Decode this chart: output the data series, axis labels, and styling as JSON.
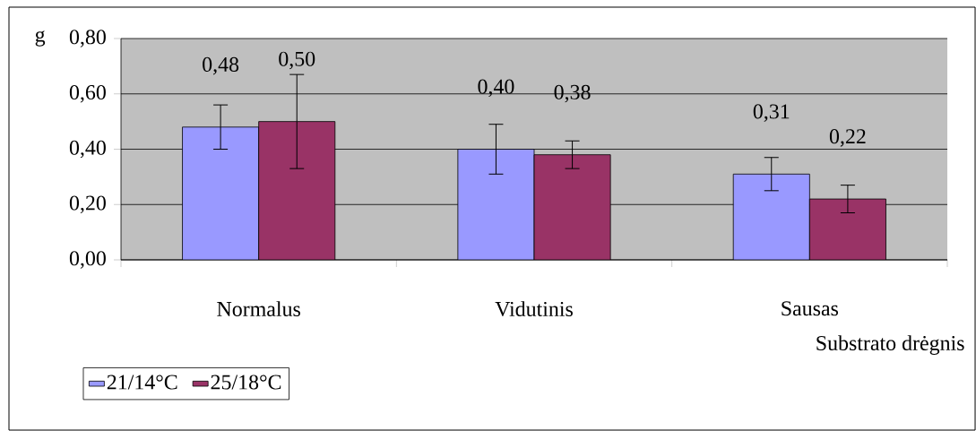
{
  "chart_data": {
    "type": "bar",
    "ylabel": "g",
    "xlabel": "Substrato drėgnis",
    "categories": [
      "Normalus",
      "Vidutinis",
      "Sausas"
    ],
    "series": [
      {
        "name": "21/14°C",
        "color": "#9999ff",
        "values": [
          0.48,
          0.4,
          0.31
        ],
        "value_labels": [
          "0,48",
          "0,40",
          "0,31"
        ],
        "errors": [
          0.08,
          0.09,
          0.06
        ]
      },
      {
        "name": "25/18°C",
        "color": "#993366",
        "values": [
          0.5,
          0.38,
          0.22
        ],
        "value_labels": [
          "0,50",
          "0,38",
          "0,22"
        ],
        "errors": [
          0.17,
          0.05,
          0.05
        ]
      }
    ],
    "ylim": [
      0,
      0.8
    ],
    "yticks": [
      {
        "value": 0,
        "label": "0,00"
      },
      {
        "value": 0.2,
        "label": "0,20"
      },
      {
        "value": 0.4,
        "label": "0,40"
      },
      {
        "value": 0.6,
        "label": "0,60"
      },
      {
        "value": 0.8,
        "label": "0,80"
      }
    ],
    "grid": "y",
    "legend": "bottom left"
  }
}
